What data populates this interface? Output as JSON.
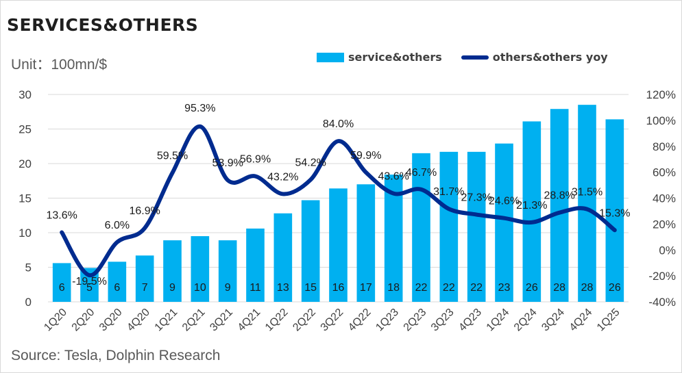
{
  "title": "SERVICES&OTHERS",
  "unit": "Unit：100mn/$",
  "source": "Source: Tesla, Dolphin Research",
  "legend": {
    "bar": "service&others",
    "line": "others&others yoy"
  },
  "colors": {
    "bar": "#00b0f0",
    "line": "#002b8f",
    "grid": "#d9d9d9"
  },
  "chart_data": {
    "type": "bar",
    "categories": [
      "1Q20",
      "2Q20",
      "3Q20",
      "4Q20",
      "1Q21",
      "2Q21",
      "3Q21",
      "4Q21",
      "1Q22",
      "2Q22",
      "3Q22",
      "4Q22",
      "1Q23",
      "2Q23",
      "3Q23",
      "4Q23",
      "1Q24",
      "2Q24",
      "3Q24",
      "4Q24",
      "1Q25"
    ],
    "series": [
      {
        "name": "service&others",
        "type": "bar",
        "axis": "left",
        "values": [
          5.6,
          4.9,
          5.8,
          6.7,
          8.9,
          9.5,
          8.9,
          10.6,
          12.8,
          14.7,
          16.4,
          17.0,
          18.4,
          21.5,
          21.7,
          21.7,
          22.9,
          26.1,
          27.9,
          28.5,
          26.4
        ],
        "labels": [
          "6",
          "5",
          "6",
          "7",
          "9",
          "10",
          "9",
          "11",
          "13",
          "15",
          "16",
          "17",
          "18",
          "22",
          "22",
          "22",
          "23",
          "26",
          "28",
          "28",
          "26"
        ]
      },
      {
        "name": "others&others yoy",
        "type": "line",
        "axis": "right",
        "values": [
          13.6,
          -19.5,
          6.0,
          16.9,
          59.5,
          95.3,
          53.9,
          56.9,
          43.2,
          54.2,
          84.0,
          59.9,
          43.6,
          46.7,
          31.7,
          27.3,
          24.6,
          21.3,
          28.8,
          31.5,
          15.3
        ],
        "labels": [
          "13.6%",
          "-19.5%",
          "6.0%",
          "16.9%",
          "59.5%",
          "95.3%",
          "53.9%",
          "56.9%",
          "43.2%",
          "54.2%",
          "84.0%",
          "59.9%",
          "43.6%",
          "46.7%",
          "31.7%",
          "27.3%",
          "24.6%",
          "21.3%",
          "28.8%",
          "31.5%",
          "15.3%"
        ]
      }
    ],
    "y_left": {
      "lim": [
        0,
        30
      ],
      "ticks": [
        "0",
        "5",
        "10",
        "15",
        "20",
        "25",
        "30"
      ]
    },
    "y_right": {
      "lim": [
        -40,
        120
      ],
      "ticks": [
        "-40%",
        "-20%",
        "0%",
        "20%",
        "40%",
        "60%",
        "80%",
        "100%",
        "120%"
      ]
    },
    "grid": true,
    "legend_position": "top"
  }
}
